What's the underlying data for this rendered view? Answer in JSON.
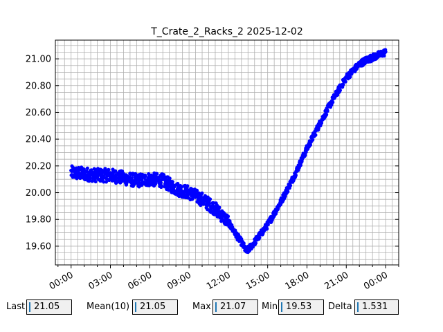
{
  "chart_data": {
    "type": "scatter",
    "title": "T_Crate_2_Racks_2 2025-12-02",
    "xlabel": "",
    "ylabel": "",
    "x_unit": "hours",
    "xlim": [
      -1.2,
      25.0
    ],
    "ylim": [
      19.46,
      21.14
    ],
    "x_ticks": [
      0,
      3,
      6,
      9,
      12,
      15,
      18,
      21,
      24
    ],
    "x_tick_labels": [
      "00:00",
      "03:00",
      "06:00",
      "09:00",
      "12:00",
      "15:00",
      "18:00",
      "21:00",
      "00:00"
    ],
    "y_ticks": [
      19.6,
      19.8,
      20.0,
      20.2,
      20.4,
      20.6,
      20.8,
      21.0
    ],
    "y_tick_labels": [
      "19.60",
      "19.80",
      "20.00",
      "20.20",
      "20.40",
      "20.60",
      "20.80",
      "21.00"
    ],
    "grid": true,
    "series": [
      {
        "color": "#0000ff",
        "x": [
          0.0,
          1.0,
          2.0,
          3.0,
          4.0,
          5.0,
          6.0,
          7.0,
          8.0,
          9.0,
          10.0,
          11.0,
          12.0,
          12.5,
          13.0,
          13.4,
          14.0,
          15.0,
          16.0,
          17.0,
          18.0,
          19.0,
          20.0,
          21.0,
          22.0,
          22.5,
          23.0,
          24.0
        ],
        "y": [
          20.15,
          20.14,
          20.13,
          20.13,
          20.11,
          20.09,
          20.1,
          20.09,
          20.03,
          20.0,
          19.95,
          19.88,
          19.78,
          19.7,
          19.63,
          19.56,
          19.63,
          19.76,
          19.93,
          20.12,
          20.33,
          20.52,
          20.7,
          20.86,
          20.96,
          20.99,
          21.01,
          21.05
        ]
      }
    ]
  },
  "stats": [
    {
      "label": "Last",
      "value": "21.05"
    },
    {
      "label": "Mean(10)",
      "value": "21.05"
    },
    {
      "label": "Max",
      "value": "21.07"
    },
    {
      "label": "Min",
      "value": "19.53"
    },
    {
      "label": "Delta",
      "value": "1.531"
    }
  ]
}
